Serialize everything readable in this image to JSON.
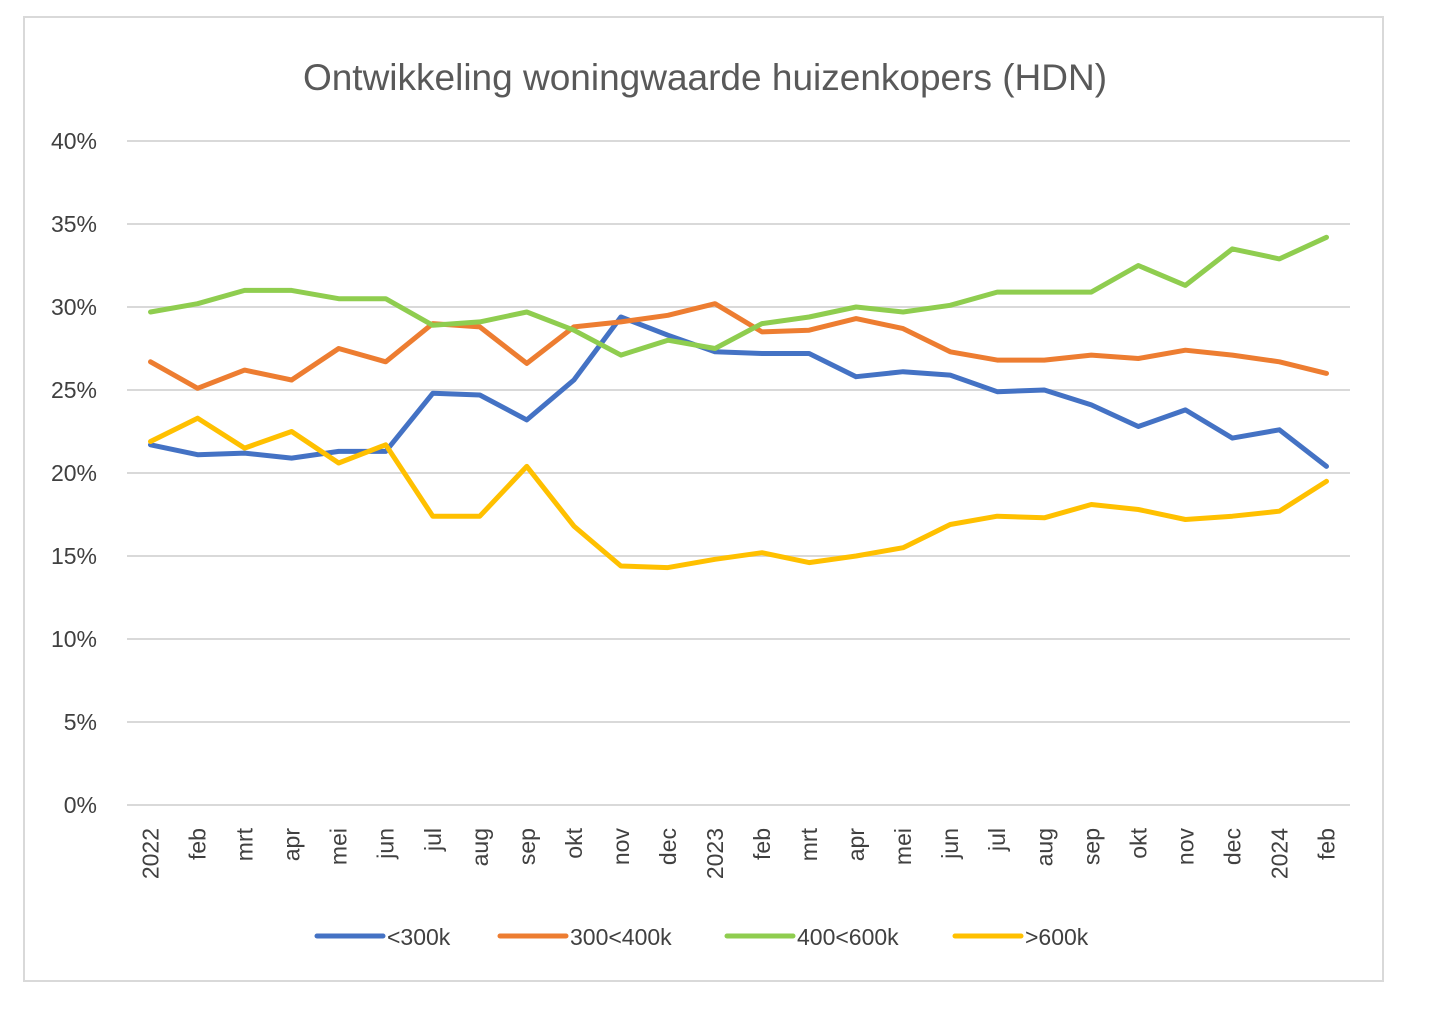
{
  "chart_data": {
    "type": "line",
    "title": "Ontwikkeling woningwaarde huizenkopers (HDN)",
    "xlabel": "",
    "ylabel": "",
    "ylim": [
      0,
      40
    ],
    "y_ticks": [
      "0%",
      "5%",
      "10%",
      "15%",
      "20%",
      "25%",
      "30%",
      "35%",
      "40%"
    ],
    "grid": true,
    "legend_position": "bottom",
    "categories": [
      "2022",
      "feb",
      "mrt",
      "apr",
      "mei",
      "jun",
      "jul",
      "aug",
      "sep",
      "okt",
      "nov",
      "dec",
      "2023",
      "feb",
      "mrt",
      "apr",
      "mei",
      "jun",
      "jul",
      "aug",
      "sep",
      "okt",
      "nov",
      "dec",
      "2024",
      "feb"
    ],
    "series": [
      {
        "name": "<300k",
        "color": "#4472c4",
        "values": [
          21.7,
          21.1,
          21.2,
          20.9,
          21.3,
          21.3,
          24.8,
          24.7,
          23.2,
          25.6,
          29.4,
          28.3,
          27.3,
          27.2,
          27.2,
          25.8,
          26.1,
          25.9,
          24.9,
          25.0,
          24.1,
          22.8,
          23.8,
          22.1,
          22.6,
          20.4
        ]
      },
      {
        "name": "300<400k",
        "color": "#ed7d31",
        "values": [
          26.7,
          25.1,
          26.2,
          25.6,
          27.5,
          26.7,
          29.0,
          28.8,
          26.6,
          28.8,
          29.1,
          29.5,
          30.2,
          28.5,
          28.6,
          29.3,
          28.7,
          27.3,
          26.8,
          26.8,
          27.1,
          26.9,
          27.4,
          27.1,
          26.7,
          26.0
        ]
      },
      {
        "name": "400<600k",
        "color": "#8fcd4f",
        "values": [
          29.7,
          30.2,
          31.0,
          31.0,
          30.5,
          30.5,
          28.9,
          29.1,
          29.7,
          28.6,
          27.1,
          28.0,
          27.5,
          29.0,
          29.4,
          30.0,
          29.7,
          30.1,
          30.9,
          30.9,
          30.9,
          32.5,
          31.3,
          33.5,
          32.9,
          34.2
        ]
      },
      {
        "name": ">600k",
        "color": "#ffc000",
        "values": [
          21.9,
          23.3,
          21.5,
          22.5,
          20.6,
          21.7,
          17.4,
          17.4,
          20.4,
          16.8,
          14.4,
          14.3,
          14.8,
          15.2,
          14.6,
          15.0,
          15.5,
          16.9,
          17.4,
          17.3,
          18.1,
          17.8,
          17.2,
          17.4,
          17.7,
          19.5
        ]
      }
    ]
  }
}
